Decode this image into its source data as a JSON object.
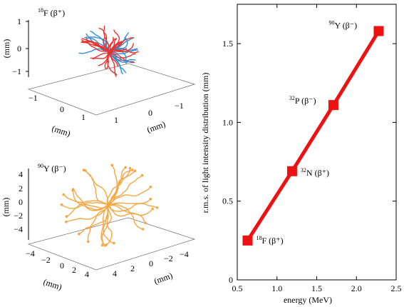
{
  "chart_data": [
    {
      "type": "scatter",
      "panel": "3d-track-plot-top",
      "title_mass": "18",
      "title_rest": "F (β⁺)",
      "z_label": "(mm)",
      "x_label": "(mm)",
      "y_label": "(mm)",
      "z_ticks": [
        "1",
        "0",
        "−1"
      ],
      "x_ticks": [
        "−1",
        "0",
        "1"
      ],
      "y_ticks": [
        "1",
        "0",
        "−1"
      ],
      "colors": {
        "primary": "#e8322e",
        "secondary": "#2f8fd8"
      }
    },
    {
      "type": "scatter",
      "panel": "3d-track-plot-bottom",
      "title_mass": "90",
      "title_rest": "Y (β⁻)",
      "z_label": "(mm)",
      "x_label": "(mm)",
      "y_label": "(mm)",
      "z_ticks": [
        "4",
        "2",
        "0",
        "−2",
        "−4"
      ],
      "x_ticks": [
        "−4",
        "−2",
        "0",
        "2",
        "4"
      ],
      "y_ticks": [
        "4",
        "2",
        "0",
        "−2",
        "−4"
      ],
      "colors": {
        "primary": "#f4a742",
        "secondary": "#2fa84a"
      }
    },
    {
      "type": "line",
      "xlabel": "energy (MeV)",
      "ylabel": "r.m.s. of light intensity distribution (mm)",
      "xlim": [
        0.5,
        2.5
      ],
      "ylim": [
        0,
        1.75
      ],
      "xticks": [
        "0.5",
        "1.0",
        "1.5",
        "2.0",
        "2.5"
      ],
      "yticks": [
        "0",
        "0.5",
        "1.0",
        "1.5"
      ],
      "color": "#ee1111",
      "series": [
        {
          "points": [
            {
              "x": 0.63,
              "y": 0.25,
              "mass": "18",
              "label": "F (β⁺)"
            },
            {
              "x": 1.19,
              "y": 0.69,
              "mass": "32",
              "label": "N (β⁺)"
            },
            {
              "x": 1.71,
              "y": 1.11,
              "mass": "32",
              "label": "P (β⁻)"
            },
            {
              "x": 2.28,
              "y": 1.58,
              "mass": "90",
              "label": "Y (β⁻)"
            }
          ]
        }
      ]
    }
  ]
}
